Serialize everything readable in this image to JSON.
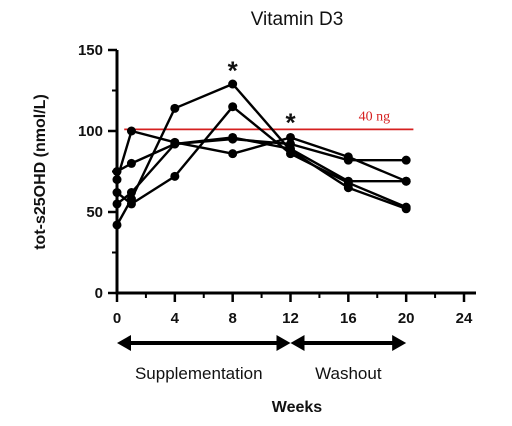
{
  "chart_data": {
    "type": "line",
    "title": "Vitamin D3",
    "xlabel": "Weeks",
    "ylabel": "tot-s25OHD (nmol/L)",
    "xlim": [
      0,
      24
    ],
    "ylim": [
      0,
      150
    ],
    "x_ticks": [
      0,
      4,
      8,
      12,
      16,
      20,
      24
    ],
    "y_ticks": [
      0,
      50,
      100,
      150
    ],
    "grid": false,
    "series": [
      {
        "x": [
          0,
          1,
          4,
          8,
          12,
          16,
          20
        ],
        "y": [
          42,
          58,
          114,
          129,
          88,
          65,
          52
        ]
      },
      {
        "x": [
          0,
          1,
          4,
          8,
          12,
          16,
          20
        ],
        "y": [
          62,
          55,
          72,
          115,
          86,
          68,
          53
        ]
      },
      {
        "x": [
          0,
          1,
          4,
          8,
          12,
          16,
          20
        ],
        "y": [
          70,
          100,
          93,
          86,
          96,
          84,
          69
        ]
      },
      {
        "x": [
          0,
          1,
          4,
          8,
          12,
          16,
          20
        ],
        "y": [
          75,
          80,
          92,
          95,
          92,
          82,
          82
        ]
      },
      {
        "x": [
          0,
          1,
          4,
          8,
          12,
          16,
          20
        ],
        "y": [
          55,
          62,
          92,
          96,
          89,
          69,
          69
        ]
      }
    ],
    "reference_line": {
      "y": 101,
      "label": "40 ng",
      "color": "#d62020"
    },
    "annotations": [
      {
        "text": "*",
        "x": 8,
        "y": 138
      },
      {
        "text": "*",
        "x": 12,
        "y": 106
      }
    ],
    "phases": [
      {
        "label": "Supplementation",
        "x_start": 0,
        "x_end": 12
      },
      {
        "label": "Washout",
        "x_start": 12,
        "x_end": 20
      }
    ]
  }
}
